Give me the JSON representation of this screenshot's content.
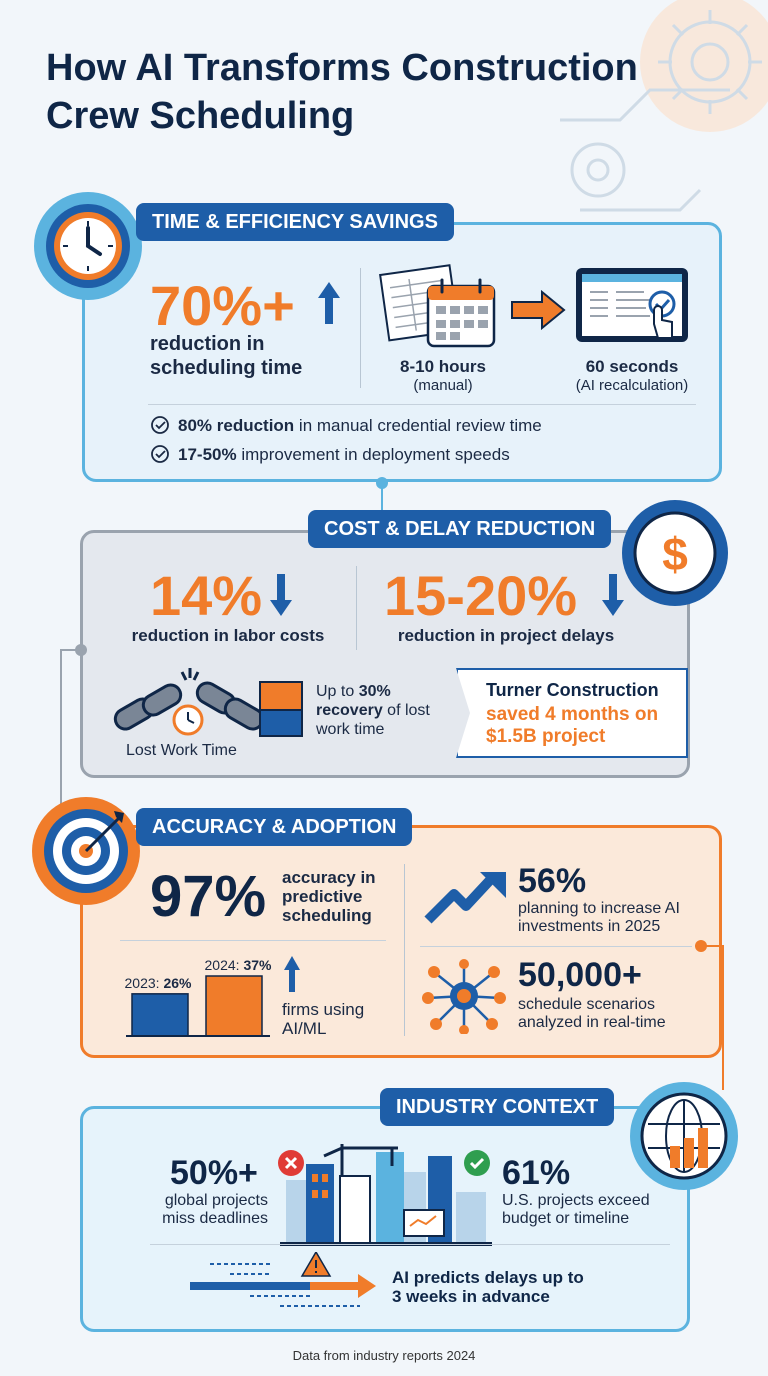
{
  "title": "How AI Transforms Construction Crew Scheduling",
  "colors": {
    "navy": "#0f2647",
    "blue": "#1e5ea8",
    "orange": "#f07c2a",
    "light_blue": "#5bb3df",
    "grey": "#9aa3ae"
  },
  "section1": {
    "label": "TIME & EFFICIENCY SAVINGS",
    "icon": "clock-icon",
    "main_stat": "70%+",
    "main_caption": "reduction in scheduling time",
    "before_value": "8-10 hours",
    "before_note": "(manual)",
    "after_value": "60 seconds",
    "after_note": "(AI recalculation)",
    "bullets": [
      {
        "bold": "80% reduction",
        "text": " in manual credential review time"
      },
      {
        "bold": "17-50%",
        "text": " improvement in deployment speeds"
      }
    ]
  },
  "section2": {
    "label": "COST & DELAY REDUCTION",
    "icon": "dollar-icon",
    "stat1": "14%",
    "stat1_caption": "reduction in labor costs",
    "stat2": "15-20%",
    "stat2_caption": "reduction in project delays",
    "lost_label": "Lost Work Time",
    "recovery_prefix": "Up to ",
    "recovery_bold": "30% recovery",
    "recovery_suffix": " of lost work time",
    "case_name": "Turner Construction",
    "case_result": "saved 4 months on $1.5B project"
  },
  "section3": {
    "label": "ACCURACY & ADOPTION",
    "icon": "target-icon",
    "accuracy_value": "97%",
    "accuracy_caption": "accuracy in predictive scheduling",
    "bar_chart": {
      "categories": [
        "2023",
        "2024"
      ],
      "values": [
        26,
        37
      ],
      "labels": [
        "26%",
        "37%"
      ]
    },
    "bar_caption": "firms using AI/ML",
    "invest_value": "56%",
    "invest_caption": "planning to increase AI investments in 2025",
    "scenario_value": "50,000+",
    "scenario_caption": "schedule scenarios analyzed in real-time"
  },
  "section4": {
    "label": "INDUSTRY CONTEXT",
    "icon": "globe-chart-icon",
    "left_value": "50%+",
    "left_caption": "global projects miss deadlines",
    "right_value": "61%",
    "right_caption": "U.S. projects exceed budget or timeline",
    "predict_text": "AI predicts delays up to 3 weeks in advance"
  },
  "footer": "Data from industry reports 2024"
}
